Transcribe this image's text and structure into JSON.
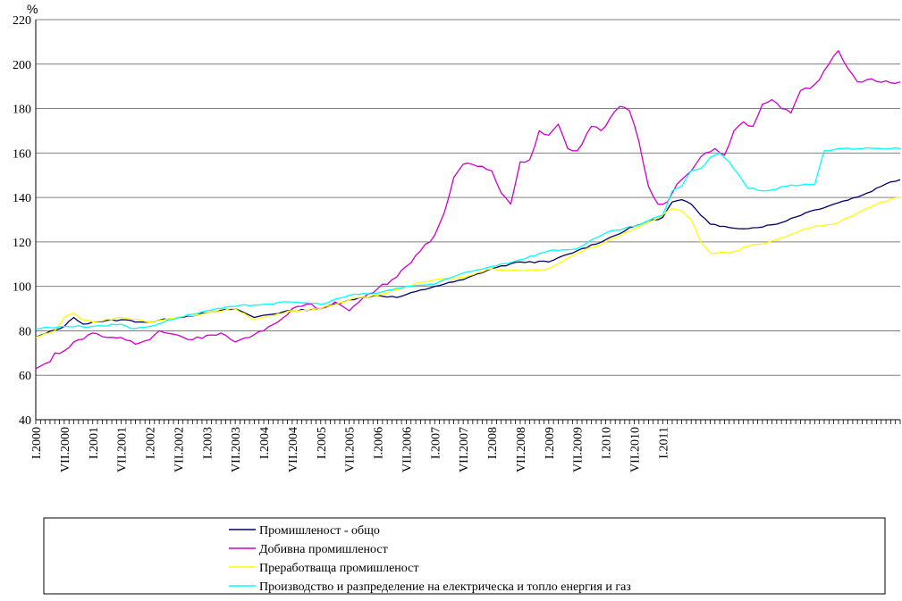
{
  "chart_data": {
    "type": "line",
    "ylabel": "%",
    "ylim": [
      40,
      220
    ],
    "yticks": [
      "40",
      "60",
      "80",
      "100",
      "120",
      "140",
      "160",
      "180",
      "200",
      "220"
    ],
    "grid": true,
    "legend_position": "bottom",
    "x_labels": [
      "I.2000",
      "VII.2000",
      "I.2001",
      "VII.2001",
      "I.2002",
      "VII.2002",
      "I.2003",
      "VII.2003",
      "I.2004",
      "VII.2004",
      "I.2005",
      "VII.2005",
      "I.2006",
      "VII.2006",
      "I.2007",
      "VII.2007",
      "I.2008",
      "VII.2008",
      "I.2009",
      "VII.2009",
      "I.2010",
      "VII.2010",
      "I.2011"
    ],
    "months": 142,
    "series": [
      {
        "name": "Промишленост - общо",
        "color": "#000066",
        "anchors": [
          [
            0,
            77
          ],
          [
            6,
            82
          ],
          [
            8,
            86
          ],
          [
            10,
            83
          ],
          [
            12,
            84
          ],
          [
            18,
            85
          ],
          [
            22,
            84
          ],
          [
            24,
            84
          ],
          [
            30,
            86
          ],
          [
            36,
            88
          ],
          [
            42,
            90
          ],
          [
            46,
            86
          ],
          [
            48,
            87
          ],
          [
            54,
            89
          ],
          [
            60,
            90
          ],
          [
            66,
            94
          ],
          [
            72,
            96
          ],
          [
            76,
            95
          ],
          [
            84,
            100
          ],
          [
            90,
            103
          ],
          [
            96,
            108
          ],
          [
            102,
            111
          ],
          [
            108,
            111
          ],
          [
            114,
            116
          ],
          [
            120,
            121
          ],
          [
            126,
            127
          ],
          [
            132,
            131
          ],
          [
            134,
            138
          ],
          [
            136,
            139
          ],
          [
            138,
            137
          ],
          [
            140,
            132
          ],
          [
            142,
            128
          ],
          [
            144,
            127
          ],
          [
            150,
            126
          ],
          [
            156,
            128
          ],
          [
            162,
            133
          ],
          [
            168,
            137
          ],
          [
            174,
            141
          ],
          [
            178,
            145
          ],
          [
            180,
            147
          ],
          [
            182,
            148
          ]
        ]
      },
      {
        "name": "Добивна промишленост",
        "color": "#cc00cc",
        "anchors": [
          [
            0,
            63
          ],
          [
            3,
            66
          ],
          [
            4,
            70
          ],
          [
            6,
            71
          ],
          [
            9,
            76
          ],
          [
            12,
            79
          ],
          [
            15,
            77
          ],
          [
            18,
            77
          ],
          [
            21,
            74
          ],
          [
            24,
            76
          ],
          [
            26,
            80
          ],
          [
            30,
            78
          ],
          [
            33,
            76
          ],
          [
            36,
            78
          ],
          [
            39,
            79
          ],
          [
            42,
            75
          ],
          [
            45,
            77
          ],
          [
            48,
            80
          ],
          [
            51,
            84
          ],
          [
            54,
            90
          ],
          [
            57,
            92
          ],
          [
            60,
            90
          ],
          [
            63,
            93
          ],
          [
            66,
            89
          ],
          [
            69,
            95
          ],
          [
            72,
            99
          ],
          [
            75,
            103
          ],
          [
            78,
            109
          ],
          [
            81,
            116
          ],
          [
            84,
            123
          ],
          [
            86,
            133
          ],
          [
            88,
            149
          ],
          [
            90,
            155
          ],
          [
            93,
            154
          ],
          [
            96,
            152
          ],
          [
            98,
            142
          ],
          [
            100,
            137
          ],
          [
            102,
            156
          ],
          [
            104,
            157
          ],
          [
            106,
            170
          ],
          [
            108,
            168
          ],
          [
            110,
            173
          ],
          [
            112,
            162
          ],
          [
            114,
            161
          ],
          [
            117,
            172
          ],
          [
            119,
            170
          ],
          [
            121,
            176
          ],
          [
            123,
            181
          ],
          [
            125,
            179
          ],
          [
            127,
            165
          ],
          [
            129,
            145
          ],
          [
            131,
            137
          ],
          [
            133,
            138
          ],
          [
            135,
            146
          ],
          [
            137,
            150
          ],
          [
            139,
            155
          ],
          [
            141,
            160
          ],
          [
            143,
            162
          ],
          [
            145,
            159
          ],
          [
            147,
            170
          ],
          [
            149,
            174
          ],
          [
            151,
            172
          ],
          [
            153,
            182
          ],
          [
            155,
            184
          ],
          [
            157,
            180
          ],
          [
            159,
            178
          ],
          [
            161,
            188
          ],
          [
            163,
            189
          ],
          [
            165,
            193
          ],
          [
            167,
            200
          ],
          [
            169,
            206
          ],
          [
            171,
            198
          ],
          [
            173,
            192
          ],
          [
            175,
            193
          ],
          [
            182,
            192
          ]
        ]
      },
      {
        "name": "Преработваща промишленост",
        "color": "#ffff00",
        "anchors": [
          [
            0,
            77
          ],
          [
            4,
            80
          ],
          [
            6,
            86
          ],
          [
            8,
            88
          ],
          [
            10,
            85
          ],
          [
            12,
            84
          ],
          [
            18,
            86
          ],
          [
            22,
            85
          ],
          [
            24,
            84
          ],
          [
            30,
            86
          ],
          [
            36,
            88
          ],
          [
            42,
            90
          ],
          [
            46,
            85
          ],
          [
            48,
            86
          ],
          [
            54,
            89
          ],
          [
            60,
            90
          ],
          [
            66,
            94
          ],
          [
            72,
            96
          ],
          [
            78,
            100
          ],
          [
            84,
            103
          ],
          [
            90,
            104
          ],
          [
            96,
            108
          ],
          [
            102,
            107
          ],
          [
            108,
            108
          ],
          [
            114,
            115
          ],
          [
            120,
            120
          ],
          [
            126,
            126
          ],
          [
            132,
            132
          ],
          [
            134,
            135
          ],
          [
            136,
            134
          ],
          [
            138,
            130
          ],
          [
            140,
            120
          ],
          [
            142,
            115
          ],
          [
            146,
            115
          ],
          [
            150,
            118
          ],
          [
            156,
            121
          ],
          [
            162,
            126
          ],
          [
            168,
            128
          ],
          [
            174,
            134
          ],
          [
            178,
            138
          ],
          [
            182,
            140
          ]
        ]
      },
      {
        "name": "Производство и разпределение на електрическа и топло енергия и газ",
        "color": "#00ffff",
        "anchors": [
          [
            0,
            81
          ],
          [
            6,
            82
          ],
          [
            12,
            82
          ],
          [
            18,
            83
          ],
          [
            20,
            81
          ],
          [
            24,
            82
          ],
          [
            30,
            86
          ],
          [
            36,
            89
          ],
          [
            42,
            91
          ],
          [
            48,
            92
          ],
          [
            54,
            93
          ],
          [
            60,
            92
          ],
          [
            66,
            96
          ],
          [
            72,
            97
          ],
          [
            78,
            100
          ],
          [
            84,
            101
          ],
          [
            90,
            106
          ],
          [
            96,
            109
          ],
          [
            102,
            112
          ],
          [
            108,
            116
          ],
          [
            114,
            117
          ],
          [
            120,
            124
          ],
          [
            126,
            127
          ],
          [
            132,
            132
          ],
          [
            134,
            143
          ],
          [
            136,
            145
          ],
          [
            138,
            152
          ],
          [
            140,
            153
          ],
          [
            142,
            158
          ],
          [
            144,
            160
          ],
          [
            146,
            156
          ],
          [
            150,
            144
          ],
          [
            154,
            143
          ],
          [
            158,
            145
          ],
          [
            162,
            146
          ],
          [
            164,
            146
          ],
          [
            166,
            161
          ],
          [
            170,
            162
          ],
          [
            174,
            162
          ],
          [
            178,
            162
          ],
          [
            182,
            162
          ]
        ]
      }
    ]
  }
}
